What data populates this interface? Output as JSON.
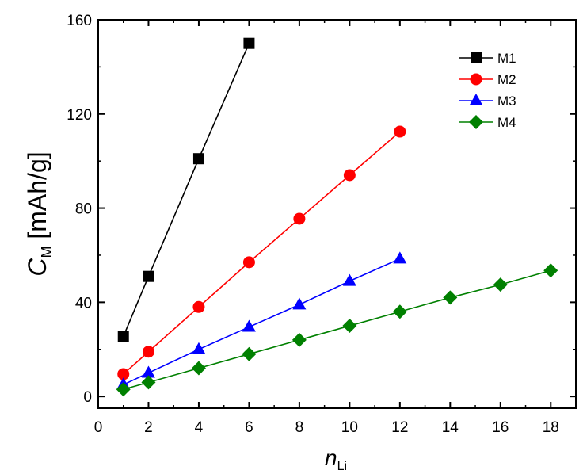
{
  "chart_data": {
    "type": "line",
    "xlabel": {
      "main": "n",
      "sub": "Li"
    },
    "ylabel": {
      "main": "C",
      "sub": "M",
      "rest": " [mAh/g]"
    },
    "xlim": [
      0,
      19
    ],
    "ylim": [
      -5,
      160
    ],
    "xticks": [
      0,
      2,
      4,
      6,
      8,
      10,
      12,
      14,
      16,
      18
    ],
    "yticks": [
      0,
      40,
      80,
      120,
      160
    ],
    "grid": false,
    "legend_position": "top-right",
    "series": [
      {
        "name": "M1",
        "color": "#000000",
        "marker": "square",
        "x": [
          1,
          2,
          4,
          6
        ],
        "y": [
          25.5,
          51,
          101,
          150
        ]
      },
      {
        "name": "M2",
        "color": "#ff0000",
        "marker": "circle",
        "x": [
          1,
          2,
          4,
          6,
          8,
          10,
          12
        ],
        "y": [
          9.5,
          19,
          38,
          57,
          75.5,
          94,
          112.5
        ]
      },
      {
        "name": "M3",
        "color": "#0000ff",
        "marker": "triangle",
        "x": [
          1,
          2,
          4,
          6,
          8,
          10,
          12
        ],
        "y": [
          5,
          10,
          20,
          29.5,
          39,
          49,
          58.5
        ]
      },
      {
        "name": "M4",
        "color": "#008000",
        "marker": "diamond",
        "x": [
          1,
          2,
          4,
          6,
          8,
          10,
          12,
          14,
          16,
          18
        ],
        "y": [
          3,
          6,
          12,
          18,
          24,
          30,
          36,
          42,
          47.5,
          53.5
        ]
      }
    ]
  }
}
